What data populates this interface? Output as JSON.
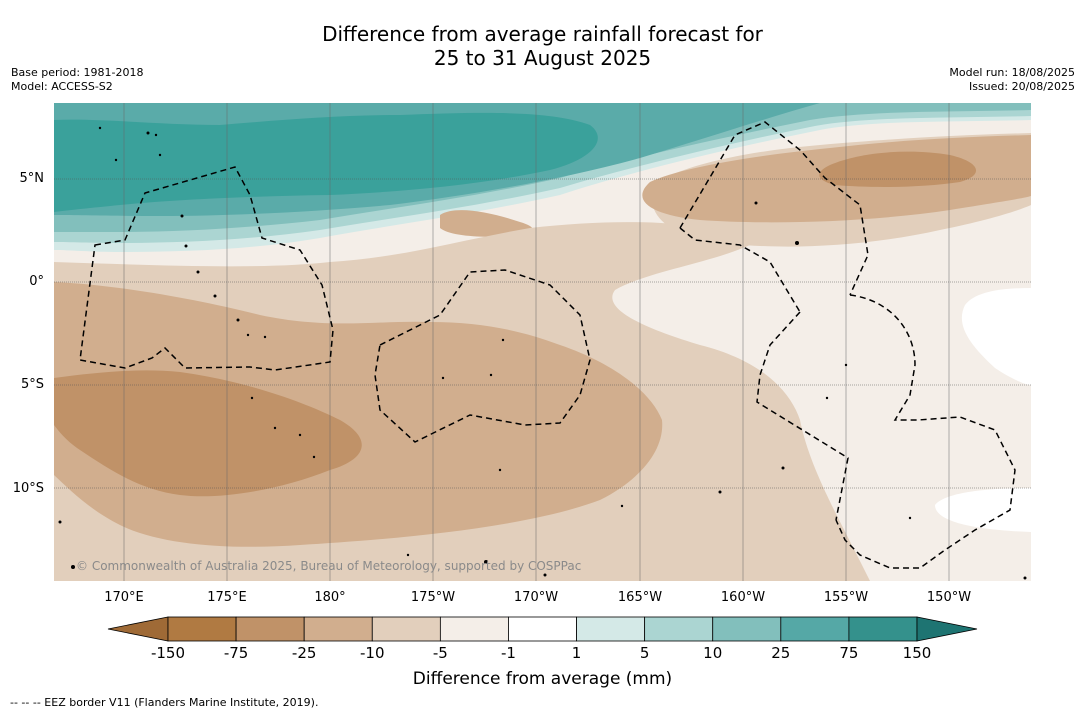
{
  "title": {
    "line1": "Difference from average rainfall forecast for",
    "line2": "25 to 31 August 2025"
  },
  "meta_left": {
    "base_period": "Base period: 1981-2018",
    "model": "Model: ACCESS-S2"
  },
  "meta_right": {
    "model_run": "Model run: 18/08/2025",
    "issued": "Issued: 20/08/2025"
  },
  "map": {
    "lat_labels": [
      "5°N",
      "0°",
      "5°S",
      "10°S"
    ],
    "lon_labels": [
      "170°E",
      "175°E",
      "180°",
      "175°W",
      "170°W",
      "165°W",
      "160°W",
      "155°W",
      "150°W"
    ],
    "copyright": "© Commonwealth of Australia 2025, Bureau of Meteorology, supported by COSPPac",
    "boundary_style": "dashed EEZ borders",
    "colors": {
      "ocean_teal_dark": "#3a9e98",
      "ocean_teal_mid": "#5aaba9",
      "ocean_teal_light": "#8ac3c1",
      "brown_dark": "#c09268",
      "brown_mid": "#d1ae8e",
      "tan": "#e2cfbc",
      "cream": "#f4eee8"
    }
  },
  "colorbar": {
    "labels": [
      "-150",
      "-75",
      "-25",
      "-10",
      "-5",
      "-1",
      "1",
      "5",
      "10",
      "25",
      "75",
      "150"
    ],
    "colors": [
      "#9f6a36",
      "#b07a42",
      "#c09268",
      "#d1ae8e",
      "#e2cfbc",
      "#f4eee8",
      "#ffffff",
      "#d4e9e7",
      "#abd5d2",
      "#82bfbc",
      "#55a8a6",
      "#34918c",
      "#1e7472"
    ],
    "title": "Difference from average (mm)"
  },
  "footnote": "--  --  -- EEZ border V11 (Flanders Marine Institute, 2019)."
}
